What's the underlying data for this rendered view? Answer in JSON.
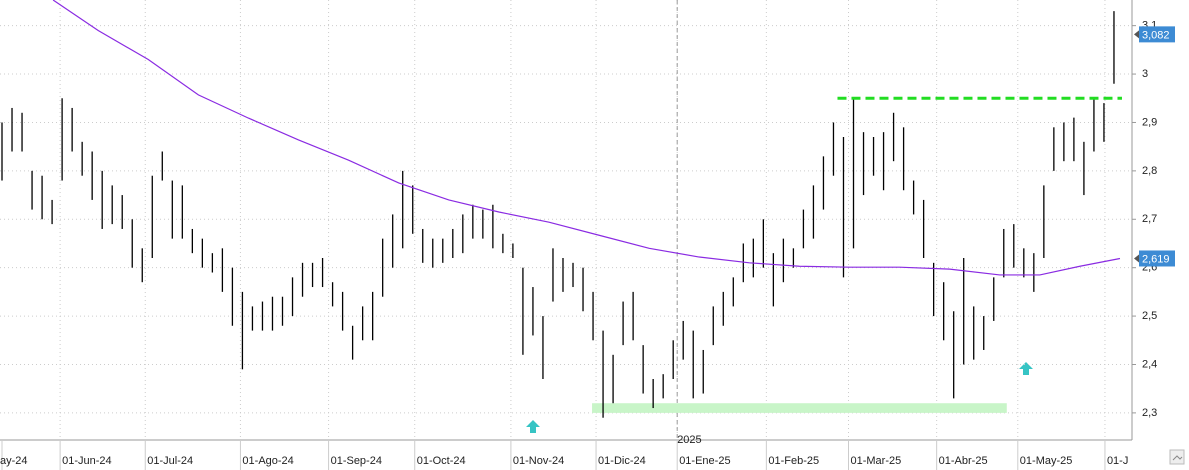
{
  "chart_data": {
    "type": "ohlc",
    "xlim": [
      -0.2,
      112.8
    ],
    "ylim": [
      2.244,
      3.153
    ],
    "xticks": [
      {
        "value": 0,
        "label": "ay-24"
      },
      {
        "value": 5.8,
        "label": "01-Jun-24"
      },
      {
        "value": 14.3,
        "label": "01-Jul-24"
      },
      {
        "value": 23.8,
        "label": "01-Ago-24"
      },
      {
        "value": 32.6,
        "label": "01-Sep-24"
      },
      {
        "value": 41.2,
        "label": "01-Oct-24"
      },
      {
        "value": 50.8,
        "label": "01-Nov-24"
      },
      {
        "value": 59.3,
        "label": "01-Dic-24"
      },
      {
        "value": 67.4,
        "label": "01-Ene-25"
      },
      {
        "value": 76.3,
        "label": "01-Feb-25"
      },
      {
        "value": 84.5,
        "label": "01-Mar-25"
      },
      {
        "value": 93.3,
        "label": "01-Abr-25"
      },
      {
        "value": 101.4,
        "label": "01-May-25"
      },
      {
        "value": 110.1,
        "label": "01-J"
      }
    ],
    "yticks": [
      {
        "value": 2.3,
        "label": "2,3"
      },
      {
        "value": 2.4,
        "label": "2,4"
      },
      {
        "value": 2.5,
        "label": "2,5"
      },
      {
        "value": 2.6,
        "label": "2,6"
      },
      {
        "value": 2.7,
        "label": "2,7"
      },
      {
        "value": 2.8,
        "label": "2,8"
      },
      {
        "value": 2.9,
        "label": "2,9"
      },
      3,
      {
        "value": 3.1,
        "label": "3,1"
      }
    ],
    "year_divider": {
      "value": 67.4,
      "label": "2025"
    },
    "grid": true,
    "bars": {
      "color": "#000000",
      "high": [
        2.9,
        2.93,
        2.92,
        2.8,
        2.79,
        2.74,
        2.95,
        2.93,
        2.86,
        2.84,
        2.8,
        2.77,
        2.75,
        2.7,
        2.64,
        2.79,
        2.84,
        2.78,
        2.77,
        2.68,
        2.66,
        2.63,
        2.64,
        2.6,
        2.55,
        2.52,
        2.53,
        2.54,
        2.54,
        2.58,
        2.61,
        2.61,
        2.62,
        2.57,
        2.55,
        2.48,
        2.52,
        2.55,
        2.66,
        2.71,
        2.8,
        2.77,
        2.68,
        2.66,
        2.66,
        2.68,
        2.71,
        2.73,
        2.72,
        2.73,
        2.67,
        2.65,
        2.6,
        2.56,
        2.5,
        2.64,
        2.62,
        2.61,
        2.6,
        2.55,
        2.47,
        2.42,
        2.53,
        2.55,
        2.44,
        2.37,
        2.38,
        2.45,
        2.49,
        2.47,
        2.43,
        2.52,
        2.55,
        2.58,
        2.65,
        2.66,
        2.7,
        2.63,
        2.66,
        2.64,
        2.72,
        2.77,
        2.83,
        2.9,
        2.87,
        2.95,
        2.88,
        2.87,
        2.88,
        2.92,
        2.89,
        2.78,
        2.74,
        2.61,
        2.57,
        2.51,
        2.62,
        2.52,
        2.5,
        2.58,
        2.68,
        2.69,
        2.64,
        2.63,
        2.77,
        2.89,
        2.9,
        2.91,
        2.86,
        2.95,
        2.94,
        3.13
      ],
      "low": [
        2.78,
        2.84,
        2.84,
        2.72,
        2.7,
        2.69,
        2.78,
        2.84,
        2.79,
        2.74,
        2.68,
        2.69,
        2.68,
        2.6,
        2.57,
        2.62,
        2.78,
        2.66,
        2.66,
        2.63,
        2.6,
        2.59,
        2.55,
        2.48,
        2.39,
        2.47,
        2.47,
        2.47,
        2.48,
        2.5,
        2.54,
        2.56,
        2.56,
        2.52,
        2.47,
        2.41,
        2.45,
        2.45,
        2.54,
        2.6,
        2.64,
        2.67,
        2.61,
        2.6,
        2.61,
        2.62,
        2.63,
        2.66,
        2.66,
        2.64,
        2.63,
        2.62,
        2.42,
        2.46,
        2.37,
        2.53,
        2.55,
        2.56,
        2.51,
        2.45,
        2.29,
        2.32,
        2.44,
        2.45,
        2.34,
        2.31,
        2.33,
        2.37,
        2.41,
        2.33,
        2.34,
        2.44,
        2.48,
        2.52,
        2.57,
        2.58,
        2.6,
        2.52,
        2.57,
        2.6,
        2.64,
        2.66,
        2.72,
        2.79,
        2.58,
        2.64,
        2.75,
        2.79,
        2.76,
        2.82,
        2.76,
        2.71,
        2.62,
        2.5,
        2.45,
        2.33,
        2.4,
        2.41,
        2.43,
        2.49,
        2.58,
        2.6,
        2.58,
        2.55,
        2.62,
        2.8,
        2.82,
        2.82,
        2.75,
        2.84,
        2.86,
        2.98
      ]
    },
    "moving_average": {
      "color": "#8a2be2",
      "x": [
        5.1,
        9.6,
        14.6,
        19.6,
        24.6,
        29.6,
        34.6,
        39.6,
        44.6,
        49.6,
        54.6,
        59.6,
        64.6,
        69.6,
        74.6,
        79.6,
        84.6,
        89.6,
        94.6,
        99.6,
        103.6,
        107.6,
        111.6
      ],
      "values": [
        3.153,
        3.09,
        3.03,
        2.957,
        2.909,
        2.864,
        2.822,
        2.775,
        2.74,
        2.715,
        2.694,
        2.667,
        2.64,
        2.622,
        2.61,
        2.603,
        2.601,
        2.601,
        2.597,
        2.585,
        2.585,
        2.603,
        2.619
      ]
    },
    "resistance": {
      "value": 2.95,
      "x": [
        83.4,
        111.8
      ],
      "color": "#22dd22"
    },
    "support_band": {
      "values": [
        2.3,
        2.32
      ],
      "x": [
        58.9,
        100.3
      ],
      "color": "#c8f5c8"
    },
    "last_price": {
      "value": 3.082,
      "label": "3,082"
    },
    "ma_last": {
      "value": 2.619,
      "label": "2,619"
    }
  }
}
